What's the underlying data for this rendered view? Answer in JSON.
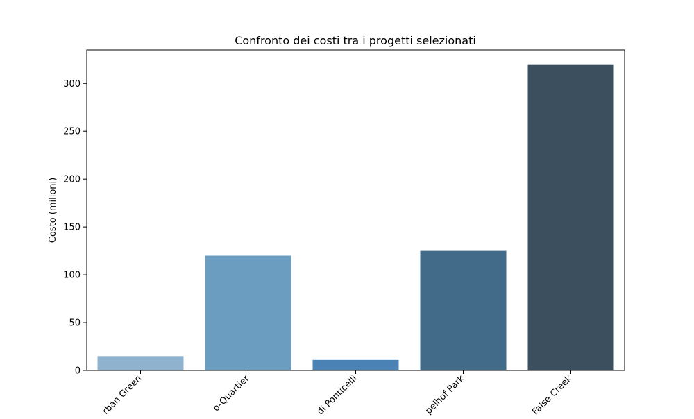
{
  "chart_data": {
    "type": "bar",
    "title": "Confronto dei costi tra i progetti selezionati",
    "xlabel": "",
    "ylabel": "Costo (milioni)",
    "categories": [
      "Urban Green",
      "Eco-Quartier",
      "Eco-Quartiere di Ponticelli",
      "Tempelhof Park",
      "False Creek"
    ],
    "tick_labels_visible": [
      "rban Green",
      "o-Quartier",
      "di Ponticelli",
      "pelhof Park",
      "False Creek"
    ],
    "values": [
      15,
      120,
      11,
      125,
      320
    ],
    "colors": [
      "#8fb3cf",
      "#6a9dbf",
      "#4a82b5",
      "#426b8a",
      "#3b4f5e"
    ],
    "ylim": [
      0,
      335
    ],
    "yticks": [
      0,
      50,
      100,
      150,
      200,
      250,
      300
    ],
    "grid": false,
    "legend": "none"
  }
}
